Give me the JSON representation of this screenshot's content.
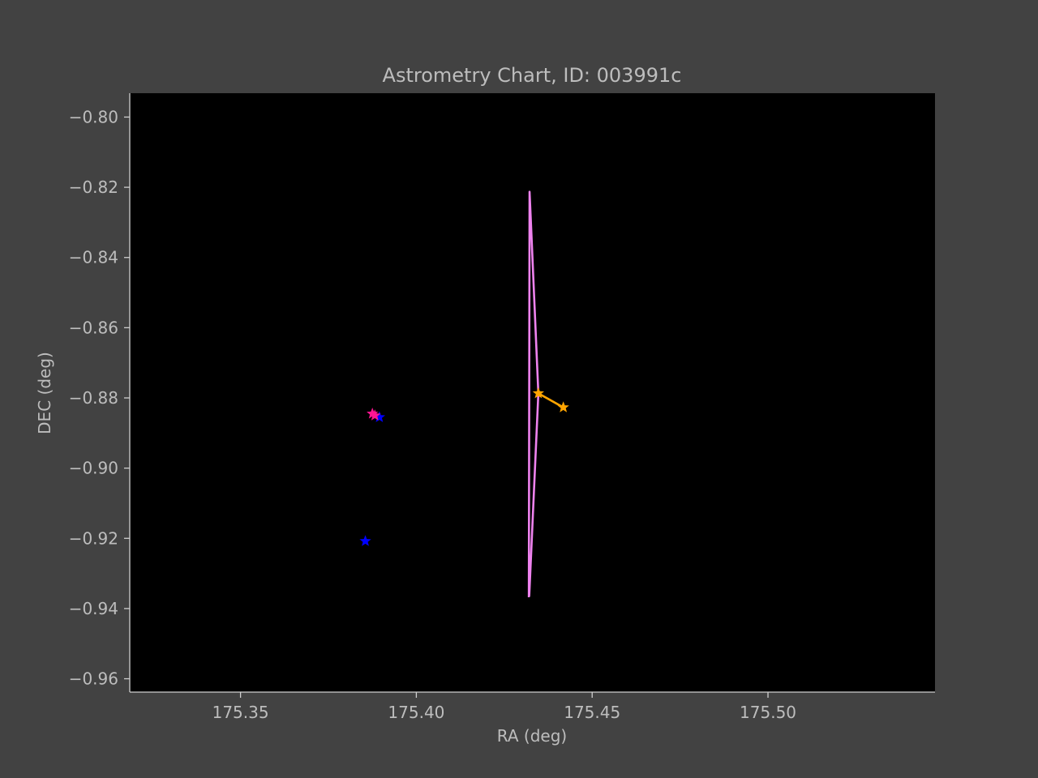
{
  "chart_data": {
    "type": "line",
    "title": "Astrometry Chart, ID: 003991c",
    "xlabel": "RA (deg)",
    "ylabel": "DEC (deg)",
    "xlim": [
      175.3185,
      175.5475
    ],
    "ylim": [
      -0.9638,
      -0.7932
    ],
    "xticks": [
      175.35,
      175.4,
      175.45,
      175.5
    ],
    "xtick_labels": [
      "175.35",
      "175.40",
      "175.45",
      "175.50"
    ],
    "yticks": [
      -0.96,
      -0.94,
      -0.92,
      -0.9,
      -0.88,
      -0.86,
      -0.84,
      -0.82,
      -0.8
    ],
    "ytick_labels": [
      "−0.96",
      "−0.94",
      "−0.92",
      "−0.90",
      "−0.88",
      "−0.86",
      "−0.84",
      "−0.82",
      "−0.80"
    ],
    "grid": false,
    "legend": "none",
    "colors": {
      "figure_background": "#424242",
      "axes_background": "#000000",
      "text": "#bdbdbd",
      "axis_spine": "#cfcfcf"
    },
    "series": [
      {
        "color": "#ee82ee",
        "style": "line",
        "points": [
          [
            175.432,
            -0.9368
          ],
          [
            175.4322,
            -0.8213
          ],
          [
            175.4347,
            -0.8787
          ],
          [
            175.4321,
            -0.9365
          ]
        ]
      },
      {
        "color": "#ffa500",
        "style": "line+star",
        "points": [
          [
            175.4347,
            -0.8787
          ],
          [
            175.4418,
            -0.8827
          ]
        ]
      },
      {
        "color": "#0000ff",
        "style": "star",
        "points": [
          [
            175.3855,
            -0.9208
          ],
          [
            175.3895,
            -0.8855
          ]
        ]
      },
      {
        "color": "#ff1493",
        "style": "star",
        "points": [
          [
            175.3875,
            -0.8845
          ],
          [
            175.3882,
            -0.885
          ]
        ]
      }
    ]
  }
}
